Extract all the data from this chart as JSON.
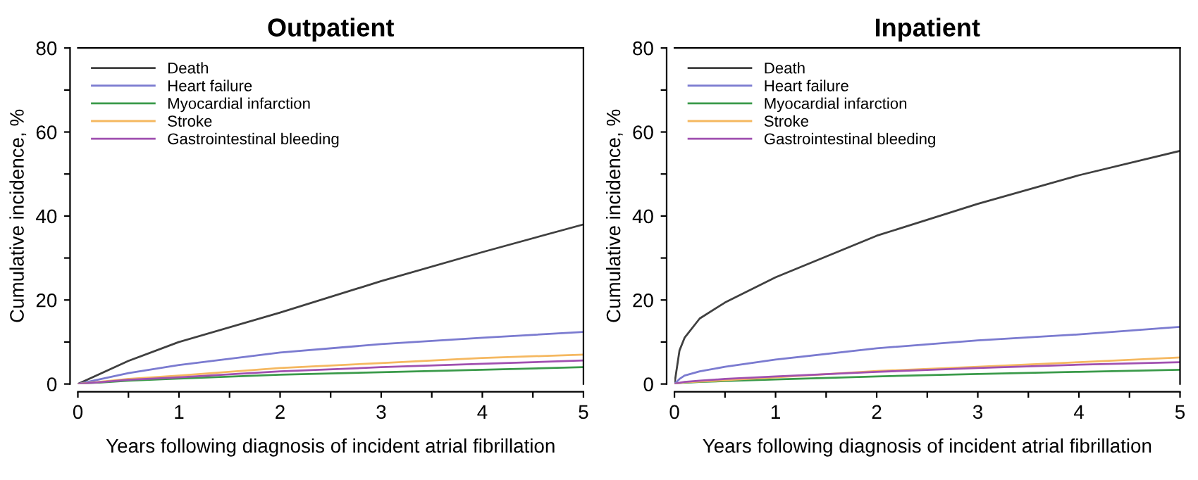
{
  "chart_data": [
    {
      "type": "line",
      "title": "Outpatient",
      "xlabel": "Years following diagnosis of incident atrial fibrillation",
      "ylabel": "Cumulative incidence, %",
      "xlim": [
        0,
        5
      ],
      "ylim": [
        0,
        80
      ],
      "xticks": [
        0,
        {
          "value": 0.5,
          "label": null
        },
        1,
        {
          "value": 1.5,
          "label": null
        },
        2,
        {
          "value": 2.5,
          "label": null
        },
        3,
        {
          "value": 3.5,
          "label": null
        },
        4,
        {
          "value": 4.5,
          "label": null
        },
        5
      ],
      "yticks": [
        0,
        {
          "value": 10,
          "label": null
        },
        20,
        {
          "value": 30,
          "label": null
        },
        40,
        {
          "value": 50,
          "label": null
        },
        60,
        {
          "value": 70,
          "label": null
        },
        80
      ],
      "x": [
        0,
        0.5,
        1,
        2,
        3,
        4,
        5
      ],
      "series": [
        {
          "name": "Death",
          "color": "#404040",
          "values": [
            0,
            5.5,
            10,
            17,
            24.5,
            31.4,
            38
          ]
        },
        {
          "name": "Heart failure",
          "color": "#7b7bd0",
          "values": [
            0,
            2.6,
            4.5,
            7.5,
            9.5,
            11,
            12.4
          ]
        },
        {
          "name": "Myocardial infarction",
          "color": "#3a9a4a",
          "values": [
            0,
            0.8,
            1.3,
            2.2,
            2.8,
            3.4,
            4
          ]
        },
        {
          "name": "Stroke",
          "color": "#f5b860",
          "values": [
            0,
            1.2,
            2,
            3.8,
            5,
            6.2,
            7
          ]
        },
        {
          "name": "Gastrointestinal bleeding",
          "color": "#a050b0",
          "values": [
            0,
            1,
            1.6,
            3,
            4,
            4.8,
            5.6
          ]
        }
      ],
      "legend": "top left",
      "grid": false,
      "marker": "none",
      "line_style": "solid"
    },
    {
      "type": "line",
      "title": "Inpatient",
      "xlabel": "Years following diagnosis of incident atrial fibrillation",
      "ylabel": "Cumulative incidence, %",
      "xlim": [
        0,
        5
      ],
      "ylim": [
        0,
        80
      ],
      "xticks": [
        0,
        {
          "value": 0.5,
          "label": null
        },
        1,
        {
          "value": 1.5,
          "label": null
        },
        2,
        {
          "value": 2.5,
          "label": null
        },
        3,
        {
          "value": 3.5,
          "label": null
        },
        4,
        {
          "value": 4.5,
          "label": null
        },
        5
      ],
      "yticks": [
        0,
        {
          "value": 10,
          "label": null
        },
        20,
        {
          "value": 30,
          "label": null
        },
        40,
        {
          "value": 50,
          "label": null
        },
        60,
        {
          "value": 70,
          "label": null
        },
        80
      ],
      "x": [
        0,
        0.05,
        0.1,
        0.25,
        0.5,
        1,
        2,
        3,
        4,
        5
      ],
      "series": [
        {
          "name": "Death",
          "color": "#404040",
          "values": [
            0,
            8,
            11,
            15.6,
            19.4,
            25.4,
            35.3,
            42.9,
            49.7,
            55.5
          ]
        },
        {
          "name": "Heart failure",
          "color": "#7b7bd0",
          "values": [
            0,
            1.2,
            2,
            3,
            4.1,
            5.8,
            8.5,
            10.4,
            11.8,
            13.6
          ]
        },
        {
          "name": "Myocardial infarction",
          "color": "#3a9a4a",
          "values": [
            0,
            0.2,
            0.3,
            0.5,
            0.7,
            1.1,
            1.8,
            2.4,
            2.9,
            3.4
          ]
        },
        {
          "name": "Stroke",
          "color": "#f5b860",
          "values": [
            0,
            0.2,
            0.4,
            0.6,
            0.9,
            1.6,
            3.1,
            4.1,
            5.2,
            6.3
          ]
        },
        {
          "name": "Gastrointestinal bleeding",
          "color": "#a050b0",
          "values": [
            0,
            0.3,
            0.5,
            0.8,
            1.2,
            1.8,
            2.9,
            3.8,
            4.6,
            5.2
          ]
        }
      ],
      "legend": "top left",
      "grid": false,
      "marker": "none",
      "line_style": "solid"
    }
  ]
}
